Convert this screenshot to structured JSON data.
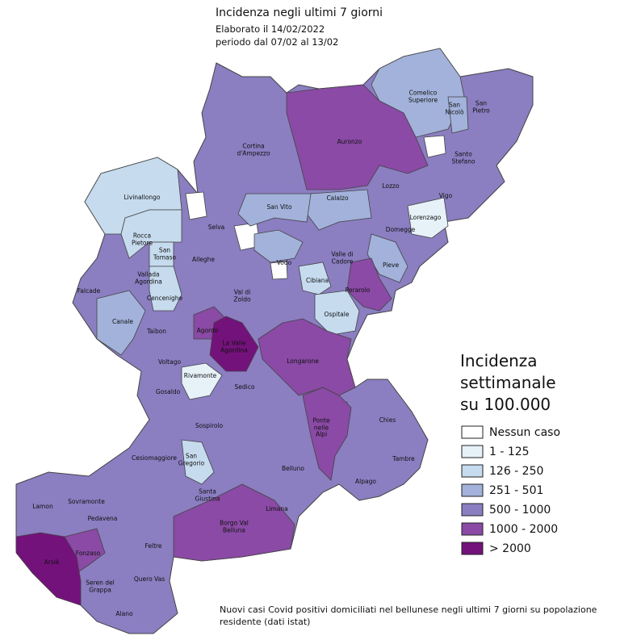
{
  "header": {
    "title": "Incidenza negli ultimi 7 giorni",
    "date": "Elaborato il 14/02/2022",
    "period": "periodo dal 07/02 al 13/02"
  },
  "legend": {
    "title": "Incidenza\nsettimanale\nsu 100.000",
    "items": [
      {
        "label": "Nessun caso",
        "color": "#ffffff"
      },
      {
        "label": "1 - 125",
        "color": "#e6f1f8"
      },
      {
        "label": "126 - 250",
        "color": "#c6dbee"
      },
      {
        "label": "251 - 501",
        "color": "#a2b2da"
      },
      {
        "label": "500 - 1000",
        "color": "#8b7ec1"
      },
      {
        "label": "1000 - 2000",
        "color": "#8a4aa5"
      },
      {
        "label": "> 2000",
        "color": "#74127b"
      }
    ]
  },
  "municipalities": [
    {
      "label": "Comelico\nSuperiore",
      "color": "#a2b2da"
    },
    {
      "label": "San\nNicolò",
      "color": "#a2b2da"
    },
    {
      "label": "San\nPietro",
      "color": "#8b7ec1"
    },
    {
      "label": "Auronzo",
      "color": "#8a4aa5"
    },
    {
      "label": "Cortina\nd'Ampezzo",
      "color": "#8b7ec1"
    },
    {
      "label": "Santo\nStefano",
      "color": "#8b7ec1"
    },
    {
      "label": "Livinallongo",
      "color": "#c6dbee"
    },
    {
      "label": "Lozzo",
      "color": "#8b7ec1"
    },
    {
      "label": "Calalzo",
      "color": "#a2b2da"
    },
    {
      "label": "San Vito",
      "color": "#a2b2da"
    },
    {
      "label": "Vigo",
      "color": "#8b7ec1"
    },
    {
      "label": "Lorenzago",
      "color": "#e6f1f8"
    },
    {
      "label": "Selva",
      "color": "#8b7ec1"
    },
    {
      "label": "Domegge",
      "color": "#8b7ec1"
    },
    {
      "label": "Rocca\nPietore",
      "color": "#c6dbee"
    },
    {
      "label": "San\nTomaso",
      "color": "#c6dbee"
    },
    {
      "label": "Alleghe",
      "color": "#8b7ec1"
    },
    {
      "label": "Vodo",
      "color": "#a2b2da"
    },
    {
      "label": "Valle di\nCadore",
      "color": "#8b7ec1"
    },
    {
      "label": "Pieve",
      "color": "#a2b2da"
    },
    {
      "label": "Falcade",
      "color": "#8b7ec1"
    },
    {
      "label": "Vallada\nAgordina",
      "color": "#8b7ec1"
    },
    {
      "label": "Cencenighe",
      "color": "#c6dbee"
    },
    {
      "label": "Cibiana",
      "color": "#c6dbee"
    },
    {
      "label": "Perarolo",
      "color": "#8a4aa5"
    },
    {
      "label": "Val di\nZoldo",
      "color": "#8b7ec1"
    },
    {
      "label": "Canale",
      "color": "#a2b2da"
    },
    {
      "label": "Ospitale",
      "color": "#c6dbee"
    },
    {
      "label": "Taibon",
      "color": "#8b7ec1"
    },
    {
      "label": "Agordo",
      "color": "#8a4aa5"
    },
    {
      "label": "La Valle\nAgordina",
      "color": "#74127b"
    },
    {
      "label": "Longarone",
      "color": "#8a4aa5"
    },
    {
      "label": "Voltago",
      "color": "#8b7ec1"
    },
    {
      "label": "Rivamonte",
      "color": "#e6f1f8"
    },
    {
      "label": "Sedico",
      "color": "#8b7ec1"
    },
    {
      "label": "Gosaldo",
      "color": "#8b7ec1"
    },
    {
      "label": "Ponte\nnelle\nAlpi",
      "color": "#8a4aa5"
    },
    {
      "label": "Chies",
      "color": "#8b7ec1"
    },
    {
      "label": "Sospirolo",
      "color": "#8b7ec1"
    },
    {
      "label": "San\nGregorio",
      "color": "#c6dbee"
    },
    {
      "label": "Tambre",
      "color": "#8b7ec1"
    },
    {
      "label": "Belluno",
      "color": "#8b7ec1"
    },
    {
      "label": "Cesiomaggiore",
      "color": "#8b7ec1"
    },
    {
      "label": "Santa\nGiustina",
      "color": "#8b7ec1"
    },
    {
      "label": "Limana",
      "color": "#8b7ec1"
    },
    {
      "label": "Alpago",
      "color": "#8b7ec1"
    },
    {
      "label": "Lamon",
      "color": "#8b7ec1"
    },
    {
      "label": "Sovramonte",
      "color": "#8b7ec1"
    },
    {
      "label": "Pedavena",
      "color": "#8b7ec1"
    },
    {
      "label": "Borgo Val\nBelluna",
      "color": "#8a4aa5"
    },
    {
      "label": "Fonzaso",
      "color": "#8a4aa5"
    },
    {
      "label": "Feltre",
      "color": "#8b7ec1"
    },
    {
      "label": "Arsiè",
      "color": "#74127b"
    },
    {
      "label": "Seren del\nGrappa",
      "color": "#8b7ec1"
    },
    {
      "label": "Quero Vas",
      "color": "#8b7ec1"
    },
    {
      "label": "Alano",
      "color": "#8b7ec1"
    }
  ],
  "note": "Nuovi casi Covid positivi domiciliati nel bellunese negli ultimi 7 giorni su popolazione residente (dati istat)"
}
